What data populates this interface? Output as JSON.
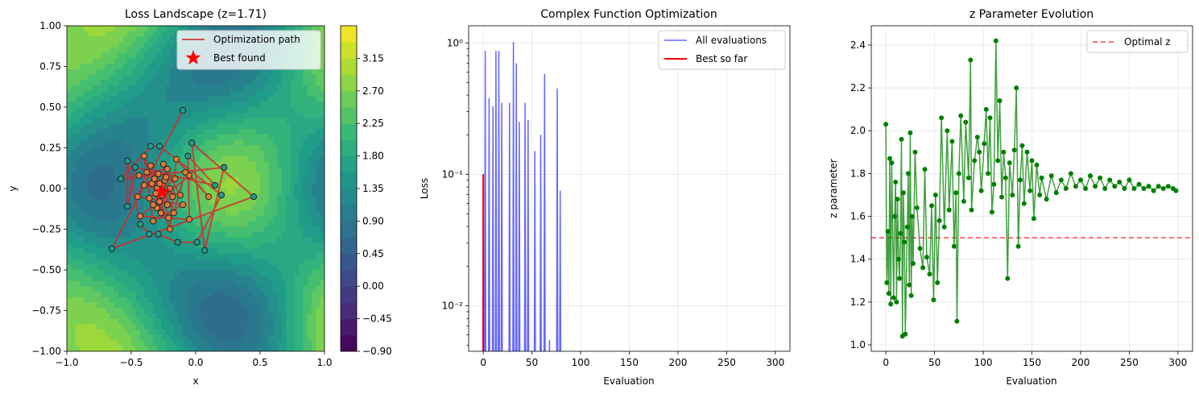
{
  "chart_data": [
    {
      "type": "contour",
      "title": "Loss Landscape (z=1.71)",
      "xlabel": "x",
      "ylabel": "y",
      "xlim": [
        -1.0,
        1.0
      ],
      "ylim": [
        -1.0,
        1.0
      ],
      "xticks": [
        "-1.0",
        "-0.5",
        "0.0",
        "0.5",
        "1.0"
      ],
      "yticks": [
        "-1.00",
        "-0.75",
        "-0.50",
        "-0.25",
        "0.00",
        "0.25",
        "0.50",
        "0.75",
        "1.00"
      ],
      "colorbar": {
        "colormap": "viridis",
        "range": [
          -0.9,
          3.6
        ],
        "ticks": [
          "-0.90",
          "-0.45",
          "0.00",
          "0.45",
          "0.90",
          "1.35",
          "1.80",
          "2.25",
          "2.70",
          "3.15"
        ]
      },
      "legend": {
        "placement": "upper right",
        "entries": [
          {
            "label": "Optimization path",
            "color": "#d62728",
            "marker": "line"
          },
          {
            "label": "Best found",
            "color": "#ff0000",
            "marker": "star"
          }
        ]
      },
      "best_found": {
        "x": -0.26,
        "y": -0.02
      },
      "path_points": [
        [
          -0.1,
          0.48
        ],
        [
          -0.65,
          -0.37
        ],
        [
          0.45,
          -0.05
        ],
        [
          -0.03,
          0.28
        ],
        [
          0.07,
          -0.38
        ],
        [
          0.22,
          0.13
        ],
        [
          -0.58,
          0.06
        ],
        [
          -0.35,
          0.26
        ],
        [
          -0.28,
          0.26
        ],
        [
          0.2,
          -0.04
        ],
        [
          0.01,
          -0.33
        ],
        [
          -0.14,
          -0.33
        ],
        [
          -0.29,
          -0.28
        ],
        [
          -0.36,
          -0.28
        ],
        [
          -0.43,
          -0.22
        ],
        [
          -0.53,
          0.17
        ],
        [
          -0.53,
          -0.11
        ],
        [
          -0.47,
          0.13
        ],
        [
          0.15,
          0.02
        ],
        [
          -0.06,
          0.2
        ],
        [
          -0.05,
          -0.19
        ],
        [
          -0.43,
          -0.17
        ],
        [
          -0.05,
          0.08
        ],
        [
          0.1,
          -0.05
        ],
        [
          -0.15,
          0.18
        ],
        [
          -0.2,
          -0.25
        ],
        [
          -0.4,
          0.2
        ],
        [
          -0.33,
          -0.2
        ],
        [
          -0.1,
          -0.1
        ],
        [
          -0.45,
          -0.05
        ],
        [
          -0.38,
          0.1
        ],
        [
          -0.22,
          0.12
        ],
        [
          -0.3,
          -0.12
        ],
        [
          -0.18,
          -0.05
        ],
        [
          -0.34,
          0.03
        ],
        [
          -0.24,
          0.05
        ],
        [
          -0.28,
          -0.08
        ],
        [
          -0.2,
          0.0
        ],
        [
          -0.32,
          0.06
        ],
        [
          -0.26,
          -0.04
        ],
        [
          -0.3,
          0.0
        ],
        [
          -0.22,
          -0.1
        ],
        [
          -0.36,
          -0.06
        ],
        [
          -0.16,
          0.06
        ],
        [
          -0.4,
          0.02
        ],
        [
          -0.12,
          -0.04
        ],
        [
          -0.25,
          0.15
        ],
        [
          -0.27,
          -0.15
        ],
        [
          -0.35,
          0.14
        ],
        [
          -0.17,
          -0.15
        ],
        [
          -0.08,
          0.1
        ],
        [
          -0.44,
          0.08
        ],
        [
          -0.29,
          0.09
        ],
        [
          -0.21,
          -0.18
        ],
        [
          -0.33,
          -0.1
        ],
        [
          -0.23,
          0.07
        ],
        [
          -0.31,
          -0.03
        ],
        [
          -0.26,
          0.02
        ],
        [
          -0.24,
          -0.02
        ],
        [
          -0.28,
          0.03
        ]
      ]
    },
    {
      "type": "line",
      "title": "Complex Function Optimization",
      "xlabel": "Evaluation",
      "ylabel": "Loss",
      "xlim": [
        -15,
        315
      ],
      "yscale": "log",
      "ylim": [
        0.0045,
        1.35
      ],
      "xticks": [
        0,
        50,
        100,
        150,
        200,
        250,
        300
      ],
      "yticks": [
        {
          "value": 0.01,
          "label": "10⁻²"
        },
        {
          "value": 0.1,
          "label": "10⁻¹"
        },
        {
          "value": 1.0,
          "label": "10⁰"
        }
      ],
      "grid": true,
      "legend": {
        "placement": "upper right"
      },
      "series": [
        {
          "name": "All evaluations",
          "color": "#5555ff",
          "spikes": [
            [
              0,
              0.1
            ],
            [
              2,
              0.87
            ],
            [
              6,
              0.38
            ],
            [
              10,
              0.33
            ],
            [
              13,
              0.87
            ],
            [
              16,
              0.87
            ],
            [
              19,
              0.35
            ],
            [
              27,
              0.35
            ],
            [
              31,
              1.02
            ],
            [
              34,
              0.7
            ],
            [
              37,
              0.25
            ],
            [
              43,
              0.35
            ],
            [
              46,
              0.26
            ],
            [
              53,
              0.15
            ],
            [
              59,
              0.2
            ],
            [
              63,
              0.58
            ],
            [
              68,
              0.0055
            ],
            [
              76,
              0.45
            ],
            [
              79,
              0.075
            ]
          ],
          "x_end": 80
        },
        {
          "name": "Best so far",
          "color": "#ff0000",
          "x": [
            0,
            0
          ],
          "y": [
            0.1,
            0.0045
          ]
        }
      ]
    },
    {
      "type": "line",
      "title": "z Parameter Evolution",
      "xlabel": "Evaluation",
      "ylabel": "z parameter",
      "xlim": [
        -15,
        315
      ],
      "ylim": [
        0.97,
        2.49
      ],
      "xticks": [
        0,
        50,
        100,
        150,
        200,
        250,
        300
      ],
      "yticks": [
        1.0,
        1.2,
        1.4,
        1.6,
        1.8,
        2.0,
        2.2,
        2.4
      ],
      "grid": true,
      "legend": {
        "placement": "upper right"
      },
      "reference_line": {
        "name": "Optimal z",
        "y": 1.5,
        "color": "#ff0000",
        "style": "dashed"
      },
      "series_color": "#008000",
      "anchors": [
        [
          0,
          2.03
        ],
        [
          1,
          1.29
        ],
        [
          2,
          1.53
        ],
        [
          3,
          1.24
        ],
        [
          4,
          1.87
        ],
        [
          5,
          1.19
        ],
        [
          6,
          1.85
        ],
        [
          8,
          1.22
        ],
        [
          9,
          1.6
        ],
        [
          10,
          1.76
        ],
        [
          11,
          1.2
        ],
        [
          12,
          1.68
        ],
        [
          13,
          1.4
        ],
        [
          14,
          1.31
        ],
        [
          15,
          1.52
        ],
        [
          16,
          1.96
        ],
        [
          17,
          1.04
        ],
        [
          18,
          1.71
        ],
        [
          19,
          1.48
        ],
        [
          20,
          1.05
        ],
        [
          22,
          1.55
        ],
        [
          23,
          1.8
        ],
        [
          24,
          1.28
        ],
        [
          25,
          1.99
        ],
        [
          26,
          1.23
        ],
        [
          27,
          1.6
        ],
        [
          28,
          1.38
        ],
        [
          30,
          1.9
        ],
        [
          32,
          1.64
        ],
        [
          35,
          1.45
        ],
        [
          38,
          1.36
        ],
        [
          40,
          1.82
        ],
        [
          42,
          1.41
        ],
        [
          45,
          1.33
        ],
        [
          47,
          1.65
        ],
        [
          49,
          1.21
        ],
        [
          51,
          1.7
        ],
        [
          53,
          1.29
        ],
        [
          55,
          1.58
        ],
        [
          57,
          2.06
        ],
        [
          60,
          1.55
        ],
        [
          63,
          2.0
        ],
        [
          65,
          1.63
        ],
        [
          68,
          1.95
        ],
        [
          70,
          1.46
        ],
        [
          72,
          1.71
        ],
        [
          73,
          1.11
        ],
        [
          75,
          1.8
        ],
        [
          77,
          2.07
        ],
        [
          80,
          1.67
        ],
        [
          82,
          2.04
        ],
        [
          85,
          1.78
        ],
        [
          87,
          2.33
        ],
        [
          88,
          1.63
        ],
        [
          91,
          1.86
        ],
        [
          94,
          1.97
        ],
        [
          96,
          1.9
        ],
        [
          98,
          1.72
        ],
        [
          101,
          1.94
        ],
        [
          103,
          2.1
        ],
        [
          105,
          1.8
        ],
        [
          107,
          2.06
        ],
        [
          109,
          1.62
        ],
        [
          111,
          1.75
        ],
        [
          113,
          2.42
        ],
        [
          115,
          1.86
        ],
        [
          117,
          2.14
        ],
        [
          119,
          1.69
        ],
        [
          121,
          1.9
        ],
        [
          123,
          1.78
        ],
        [
          125,
          1.31
        ],
        [
          127,
          1.85
        ],
        [
          130,
          1.7
        ],
        [
          132,
          1.91
        ],
        [
          134,
          2.2
        ],
        [
          136,
          1.46
        ],
        [
          138,
          1.77
        ],
        [
          140,
          1.93
        ],
        [
          142,
          1.66
        ],
        [
          145,
          1.9
        ],
        [
          148,
          1.72
        ],
        [
          150,
          1.86
        ],
        [
          152,
          1.59
        ],
        [
          155,
          1.84
        ],
        [
          158,
          1.7
        ],
        [
          160,
          1.78
        ],
        [
          165,
          1.68
        ],
        [
          170,
          1.79
        ],
        [
          175,
          1.71
        ],
        [
          180,
          1.77
        ],
        [
          185,
          1.73
        ],
        [
          190,
          1.8
        ],
        [
          195,
          1.74
        ],
        [
          200,
          1.77
        ],
        [
          205,
          1.73
        ],
        [
          210,
          1.79
        ],
        [
          215,
          1.74
        ],
        [
          220,
          1.78
        ],
        [
          225,
          1.73
        ],
        [
          230,
          1.77
        ],
        [
          235,
          1.74
        ],
        [
          240,
          1.76
        ],
        [
          245,
          1.73
        ],
        [
          250,
          1.77
        ],
        [
          255,
          1.73
        ],
        [
          260,
          1.75
        ],
        [
          265,
          1.73
        ],
        [
          270,
          1.74
        ],
        [
          275,
          1.72
        ],
        [
          280,
          1.74
        ],
        [
          285,
          1.73
        ],
        [
          290,
          1.74
        ],
        [
          295,
          1.73
        ],
        [
          298,
          1.72
        ]
      ]
    }
  ]
}
